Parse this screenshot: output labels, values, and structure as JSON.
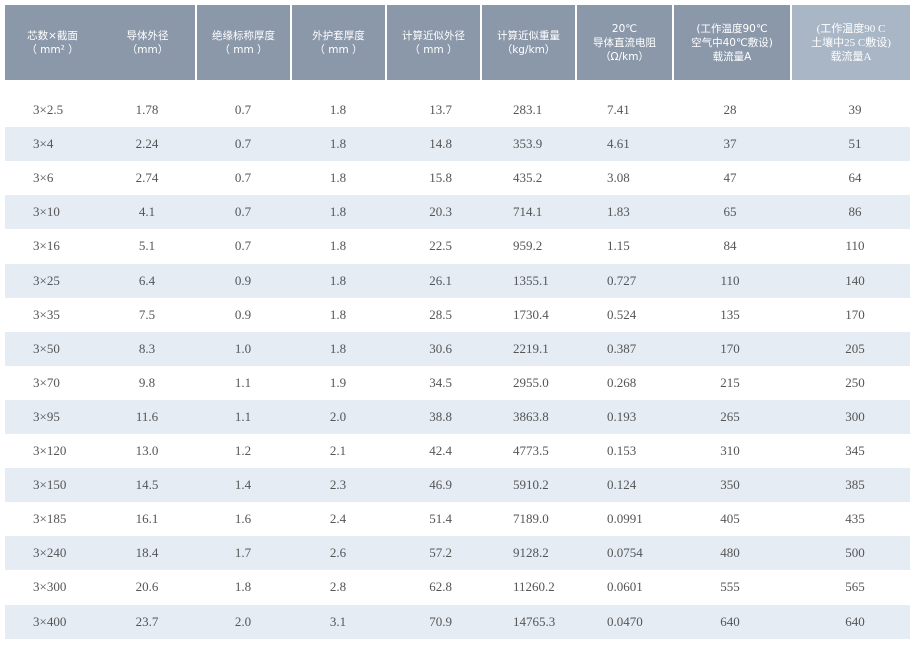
{
  "table": {
    "header": [
      [
        "芯数×截面",
        "（ mm² ）"
      ],
      [
        "导体外径",
        "（mm）"
      ],
      [
        "绝缘标称厚度",
        "（ mm ）"
      ],
      [
        "外护套厚度",
        "（ mm ）"
      ],
      [
        "计算近似外径",
        "（ mm ）"
      ],
      [
        "计算近似重量",
        "（kg/km）"
      ],
      [
        "20℃",
        "导体直流电阻",
        "（Ω/km）"
      ],
      [
        "(工作温度90℃",
        "空气中40℃敷设)",
        "载流量A"
      ],
      [
        "(工作温度90 C",
        "土壤中25 C敷设)",
        "载流量A"
      ]
    ],
    "rows": [
      [
        "3×2.5",
        "1.78",
        "0.7",
        "1.8",
        "13.7",
        "283.1",
        "7.41",
        "28",
        "39"
      ],
      [
        "3×4",
        "2.24",
        "0.7",
        "1.8",
        "14.8",
        "353.9",
        "4.61",
        "37",
        "51"
      ],
      [
        "3×6",
        "2.74",
        "0.7",
        "1.8",
        "15.8",
        "435.2",
        "3.08",
        "47",
        "64"
      ],
      [
        "3×10",
        "4.1",
        "0.7",
        "1.8",
        "20.3",
        "714.1",
        "1.83",
        "65",
        "86"
      ],
      [
        "3×16",
        "5.1",
        "0.7",
        "1.8",
        "22.5",
        "959.2",
        "1.15",
        "84",
        "110"
      ],
      [
        "3×25",
        "6.4",
        "0.9",
        "1.8",
        "26.1",
        "1355.1",
        "0.727",
        "110",
        "140"
      ],
      [
        "3×35",
        "7.5",
        "0.9",
        "1.8",
        "28.5",
        "1730.4",
        "0.524",
        "135",
        "170"
      ],
      [
        "3×50",
        "8.3",
        "1.0",
        "1.8",
        "30.6",
        "2219.1",
        "0.387",
        "170",
        "205"
      ],
      [
        "3×70",
        "9.8",
        "1.1",
        "1.9",
        "34.5",
        "2955.0",
        "0.268",
        "215",
        "250"
      ],
      [
        "3×95",
        "11.6",
        "1.1",
        "2.0",
        "38.8",
        "3863.8",
        "0.193",
        "265",
        "300"
      ],
      [
        "3×120",
        "13.0",
        "1.2",
        "2.1",
        "42.4",
        "4773.5",
        "0.153",
        "310",
        "345"
      ],
      [
        "3×150",
        "14.5",
        "1.4",
        "2.3",
        "46.9",
        "5910.2",
        "0.124",
        "350",
        "385"
      ],
      [
        "3×185",
        "16.1",
        "1.6",
        "2.4",
        "51.4",
        "7189.0",
        "0.0991",
        "405",
        "435"
      ],
      [
        "3×240",
        "18.4",
        "1.7",
        "2.6",
        "57.2",
        "9128.2",
        "0.0754",
        "480",
        "500"
      ],
      [
        "3×300",
        "20.6",
        "1.8",
        "2.8",
        "62.8",
        "11260.2",
        "0.0601",
        "555",
        "565"
      ],
      [
        "3×400",
        "23.7",
        "2.0",
        "3.1",
        "70.9",
        "14765.3",
        "0.0470",
        "640",
        "640"
      ]
    ]
  }
}
